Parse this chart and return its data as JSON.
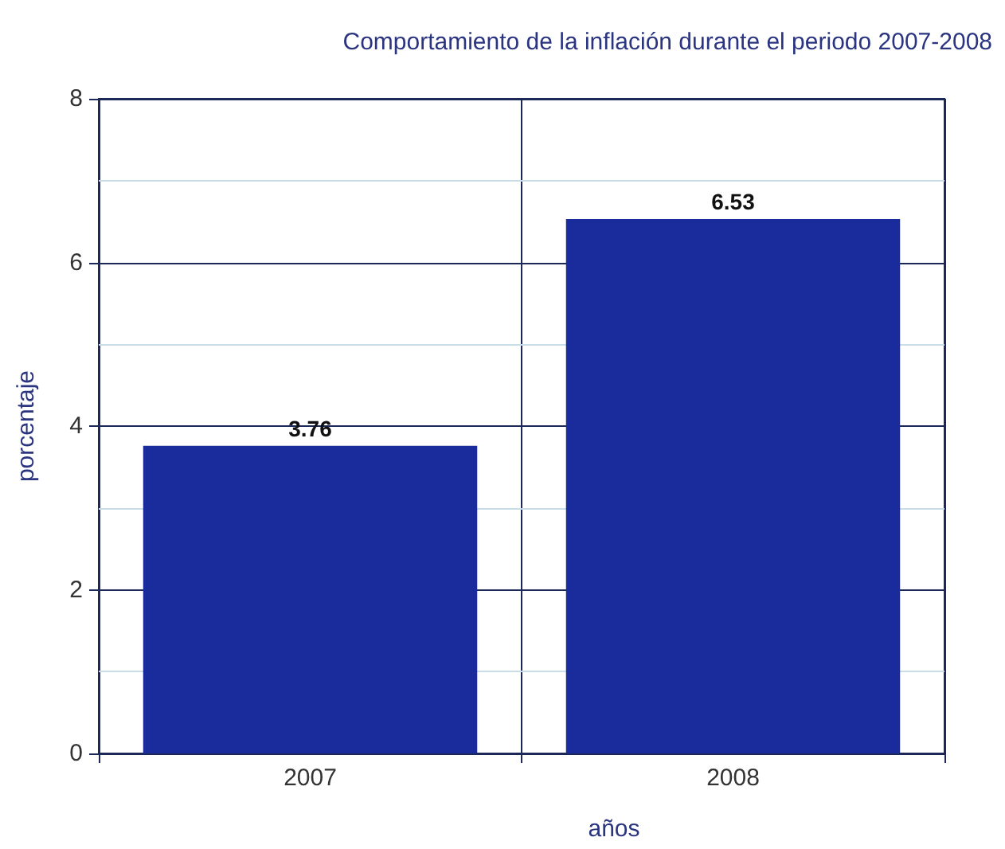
{
  "chart_data": {
    "type": "bar",
    "title": "Comportamiento de la inflación durante el periodo 2007-2008",
    "xlabel": "años",
    "ylabel": "porcentaje",
    "categories": [
      "2007",
      "2008"
    ],
    "values": [
      3.76,
      6.53
    ],
    "color": "#1a2c9c",
    "ylim": [
      0,
      8
    ],
    "yticks": [
      0,
      {
        "value": 1,
        "label": null
      },
      2,
      {
        "value": 3,
        "label": null
      },
      4,
      {
        "value": 5,
        "label": null
      },
      6,
      {
        "value": 7,
        "label": null
      },
      8
    ],
    "grid": true,
    "data_labels": true
  }
}
